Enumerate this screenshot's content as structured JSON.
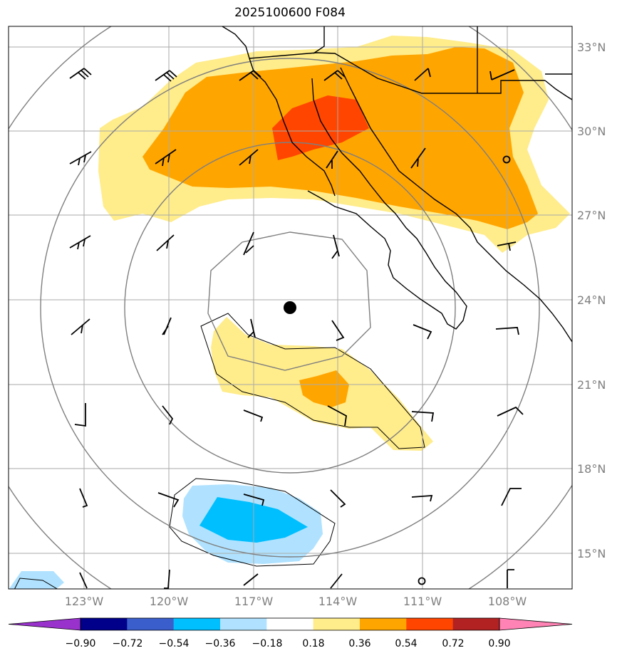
{
  "title": "2025100600 F084",
  "map": {
    "lat_labels": [
      "33°N",
      "30°N",
      "27°N",
      "24°N",
      "21°N",
      "18°N",
      "15°N"
    ],
    "lon_labels": [
      "123°W",
      "120°W",
      "117°W",
      "114°W",
      "111°W",
      "108°W"
    ],
    "center_marker": "storm-center"
  },
  "colorbar": {
    "tick_labels": [
      "−0.90",
      "−0.72",
      "−0.54",
      "−0.36",
      "−0.18",
      "0.18",
      "0.36",
      "0.54",
      "0.72",
      "0.90"
    ],
    "colors": [
      "#9932cc",
      "#00008b",
      "#3a5fcd",
      "#00bfff",
      "#b0e2ff",
      "#ffffff",
      "#ffec8b",
      "#ffa500",
      "#ff4500",
      "#b22222",
      "#ff83b4"
    ]
  }
}
